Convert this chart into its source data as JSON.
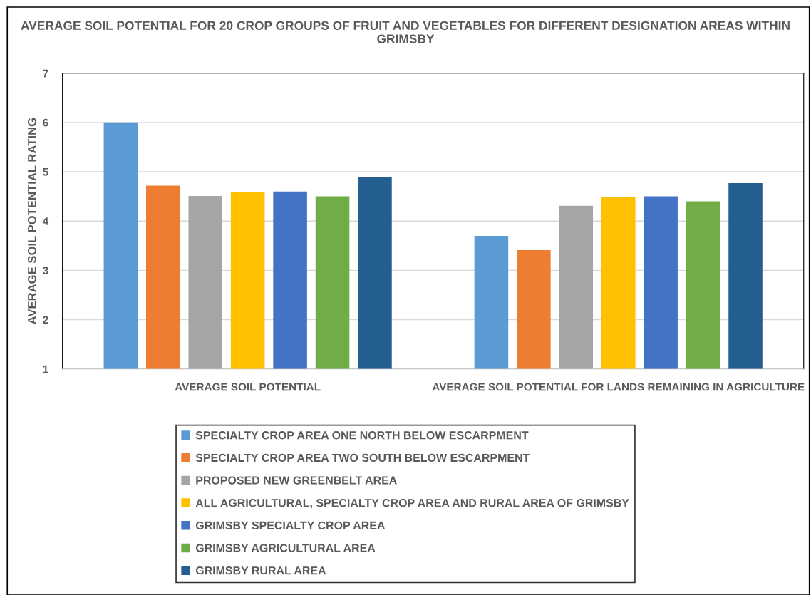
{
  "chart_data": {
    "type": "bar",
    "title": "AVERAGE SOIL POTENTIAL FOR 20 CROP GROUPS OF FRUIT AND VEGETABLES FOR DIFFERENT DESIGNATION AREAS WITHIN GRIMSBY",
    "ylabel": "AVERAGE SOIL POTENTIAL RATING",
    "categories": [
      "AVERAGE SOIL POTENTIAL",
      "AVERAGE SOIL POTENTIAL FOR LANDS REMAINING IN AGRICULTURE"
    ],
    "series": [
      {
        "name": "SPECIALTY CROP AREA ONE NORTH BELOW ESCARPMENT",
        "color": "#5b9bd5",
        "values": [
          6.0,
          3.7
        ]
      },
      {
        "name": "SPECIALTY CROP AREA TWO SOUTH BELOW ESCARPMENT",
        "color": "#ed7d31",
        "values": [
          4.72,
          3.41
        ]
      },
      {
        "name": "PROPOSED NEW GREENBELT AREA",
        "color": "#a5a5a5",
        "values": [
          4.51,
          4.31
        ]
      },
      {
        "name": "ALL AGRICULTURAL, SPECIALTY CROP AREA AND RURAL AREA OF GRIMSBY",
        "color": "#ffc000",
        "values": [
          4.58,
          4.48
        ]
      },
      {
        "name": "GRIMSBY SPECIALTY CROP AREA",
        "color": "#4472c4",
        "values": [
          4.6,
          4.5
        ]
      },
      {
        "name": "GRIMSBY AGRICULTURAL AREA",
        "color": "#70ad47",
        "values": [
          4.5,
          4.4
        ]
      },
      {
        "name": "GRIMSBY RURAL AREA",
        "color": "#255e91",
        "values": [
          4.89,
          4.77
        ]
      }
    ],
    "ylim": [
      1,
      7
    ],
    "yticks": [
      1,
      2,
      3,
      4,
      5,
      6,
      7
    ],
    "grid": "y",
    "legend": "bottom"
  }
}
